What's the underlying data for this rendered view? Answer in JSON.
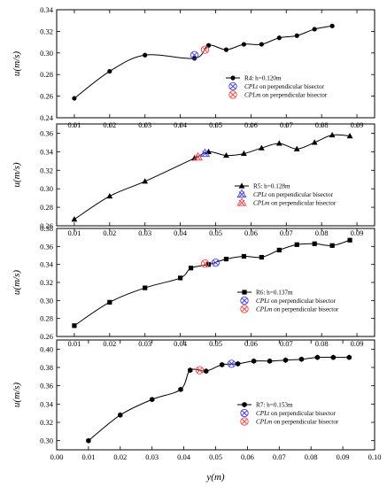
{
  "chart_data": [
    {
      "type": "line",
      "panel": "R4",
      "ylabel": "u(m/s)",
      "ylim": [
        0.24,
        0.34
      ],
      "yticks": [
        "0.24",
        "0.26",
        "0.28",
        "0.30",
        "0.32",
        "0.34"
      ],
      "xlim": [
        0.005,
        0.095
      ],
      "xticks": [
        "0.01",
        "0.02",
        "0.03",
        "0.04",
        "0.05",
        "0.06",
        "0.07",
        "0.08",
        "0.09"
      ],
      "marker": "circle",
      "series": [
        {
          "name": "R4: h=0.120m",
          "x": [
            0.01,
            0.02,
            0.03,
            0.044,
            0.048,
            0.053,
            0.058,
            0.063,
            0.068,
            0.073,
            0.078,
            0.083
          ],
          "y": [
            0.258,
            0.283,
            0.298,
            0.295,
            0.307,
            0.303,
            0.308,
            0.308,
            0.314,
            0.316,
            0.322,
            0.325
          ]
        },
        {
          "name": "CPLt on perpendicular bisector",
          "x": [
            0.044
          ],
          "y": [
            0.298
          ],
          "color": "#3a3aff"
        },
        {
          "name": "CPLm on perpendicular bisector",
          "x": [
            0.047
          ],
          "y": [
            0.303
          ],
          "color": "#ff4040"
        }
      ],
      "legend": [
        {
          "symbol": "line-circle",
          "label": "R4: h=0.120m"
        },
        {
          "symbol": "cross-blue",
          "italic": "CPLt",
          "label": " on perpendicular bisector"
        },
        {
          "symbol": "cross-red",
          "italic": "CPLm",
          "label": " on perpendicular bisector"
        }
      ]
    },
    {
      "type": "line",
      "panel": "R5",
      "ylabel": "u(m/s)",
      "ylim": [
        0.26,
        0.37
      ],
      "yticks": [
        "0.26",
        "0.28",
        "0.30",
        "0.32",
        "0.34",
        "0.36"
      ],
      "xlim": [
        0.005,
        0.095
      ],
      "xticks": [
        "0.01",
        "0.02",
        "0.03",
        "0.04",
        "0.05",
        "0.06",
        "0.07",
        "0.08",
        "0.09"
      ],
      "marker": "triangle",
      "series": [
        {
          "name": "R5: h=0.128m",
          "x": [
            0.01,
            0.02,
            0.03,
            0.044,
            0.048,
            0.053,
            0.058,
            0.063,
            0.068,
            0.073,
            0.078,
            0.083,
            0.088
          ],
          "y": [
            0.267,
            0.292,
            0.308,
            0.333,
            0.34,
            0.336,
            0.338,
            0.344,
            0.349,
            0.343,
            0.35,
            0.358,
            0.357
          ]
        },
        {
          "name": "CPLt on perpendicular bisector",
          "x": [
            0.047
          ],
          "y": [
            0.338
          ],
          "color": "#3a3aff"
        },
        {
          "name": "CPLm on perpendicular bisector",
          "x": [
            0.045
          ],
          "y": [
            0.334
          ],
          "color": "#ff4040"
        }
      ],
      "legend": [
        {
          "symbol": "line-triangle",
          "label": "R5: h=0.128m"
        },
        {
          "symbol": "cross-blue",
          "italic": "CPLt",
          "label": " on perpendicular bisector"
        },
        {
          "symbol": "cross-red",
          "italic": "CPLm",
          "label": " on perpendicular bisector"
        }
      ]
    },
    {
      "type": "line",
      "panel": "R6",
      "ylabel": "u(m/s)",
      "ylim": [
        0.26,
        0.38
      ],
      "yticks": [
        "0.26",
        "0.28",
        "0.30",
        "0.32",
        "0.34",
        "0.36",
        "0.38"
      ],
      "xlim": [
        0.005,
        0.095
      ],
      "xticks": [
        "0.01",
        "0.02",
        "0.03",
        "0.04",
        "0.05",
        "0.06",
        "0.07",
        "0.08",
        "0.09"
      ],
      "marker": "square",
      "series": [
        {
          "name": "R6: h=0.137m",
          "x": [
            0.01,
            0.02,
            0.03,
            0.04,
            0.043,
            0.048,
            0.053,
            0.058,
            0.063,
            0.068,
            0.073,
            0.078,
            0.083,
            0.088
          ],
          "y": [
            0.272,
            0.298,
            0.314,
            0.325,
            0.336,
            0.34,
            0.346,
            0.349,
            0.348,
            0.356,
            0.362,
            0.363,
            0.361,
            0.367
          ]
        },
        {
          "name": "CPLt on perpendicular bisector",
          "x": [
            0.05
          ],
          "y": [
            0.342
          ],
          "color": "#3a3aff"
        },
        {
          "name": "CPLm on perpendicular bisector",
          "x": [
            0.047
          ],
          "y": [
            0.341
          ],
          "color": "#ff4040"
        }
      ],
      "legend": [
        {
          "symbol": "line-square",
          "label": "R6: h=0.137m"
        },
        {
          "symbol": "cross-blue",
          "italic": "CPLt",
          "label": " on perpendicular bisector"
        },
        {
          "symbol": "cross-red",
          "italic": "CPLm",
          "label": " on perpendicular bisector"
        }
      ]
    },
    {
      "type": "line",
      "panel": "R7",
      "ylabel": "u(m/s)",
      "xlabel": "y(m)",
      "ylim": [
        0.29,
        0.41
      ],
      "yticks": [
        "0.30",
        "0.32",
        "0.34",
        "0.36",
        "0.38",
        "0.40"
      ],
      "xlim": [
        0.0,
        0.1
      ],
      "xticks": [
        "0.00",
        "0.01",
        "0.02",
        "0.03",
        "0.04",
        "0.05",
        "0.06",
        "0.07",
        "0.08",
        "0.09",
        "0.10"
      ],
      "marker": "hexagon",
      "series": [
        {
          "name": "R7: h=0.153m",
          "x": [
            0.01,
            0.02,
            0.03,
            0.039,
            0.042,
            0.047,
            0.052,
            0.057,
            0.062,
            0.067,
            0.072,
            0.077,
            0.082,
            0.087,
            0.092
          ],
          "y": [
            0.3,
            0.328,
            0.345,
            0.356,
            0.377,
            0.376,
            0.383,
            0.384,
            0.387,
            0.387,
            0.388,
            0.389,
            0.391,
            0.391,
            0.391
          ]
        },
        {
          "name": "CPLt on perpendicular bisector",
          "x": [
            0.055
          ],
          "y": [
            0.384
          ],
          "color": "#3a3aff"
        },
        {
          "name": "CPLm on perpendicular bisector",
          "x": [
            0.045
          ],
          "y": [
            0.377
          ],
          "color": "#ff4040"
        }
      ],
      "legend": [
        {
          "symbol": "line-hexagon",
          "label": "R7: h=0.153m"
        },
        {
          "symbol": "cross-blue",
          "italic": "CPLt",
          "label": " on perpendicular bisector"
        },
        {
          "symbol": "cross-red",
          "italic": "CPLm",
          "label": " on perpendicular bisector"
        }
      ]
    }
  ]
}
